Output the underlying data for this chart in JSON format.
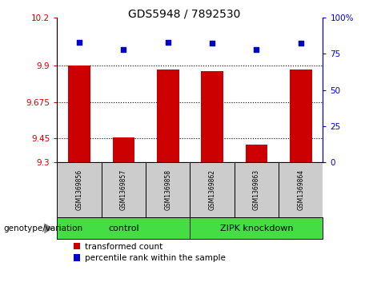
{
  "title": "GDS5948 / 7892530",
  "samples": [
    "GSM1369856",
    "GSM1369857",
    "GSM1369858",
    "GSM1369862",
    "GSM1369863",
    "GSM1369864"
  ],
  "bar_values": [
    9.9,
    9.455,
    9.875,
    9.865,
    9.41,
    9.875
  ],
  "dot_values": [
    83,
    78,
    83,
    82,
    78,
    82
  ],
  "ylim_left": [
    9.3,
    10.2
  ],
  "ylim_right": [
    0,
    100
  ],
  "yticks_left": [
    9.3,
    9.45,
    9.675,
    9.9,
    10.2
  ],
  "ytick_labels_left": [
    "9.3",
    "9.45",
    "9.675",
    "9.9",
    "10.2"
  ],
  "yticks_right": [
    0,
    25,
    50,
    75,
    100
  ],
  "ytick_labels_right": [
    "0",
    "25",
    "50",
    "75",
    "100%"
  ],
  "bar_color": "#cc0000",
  "dot_color": "#0000cc",
  "legend_bar": "transformed count",
  "legend_dot": "percentile rank within the sample",
  "group_label": "genotype/variation",
  "control_label": "control",
  "knockdown_label": "ZIPK knockdown",
  "gray_bg": "#cccccc",
  "green_bg": "#44dd44"
}
